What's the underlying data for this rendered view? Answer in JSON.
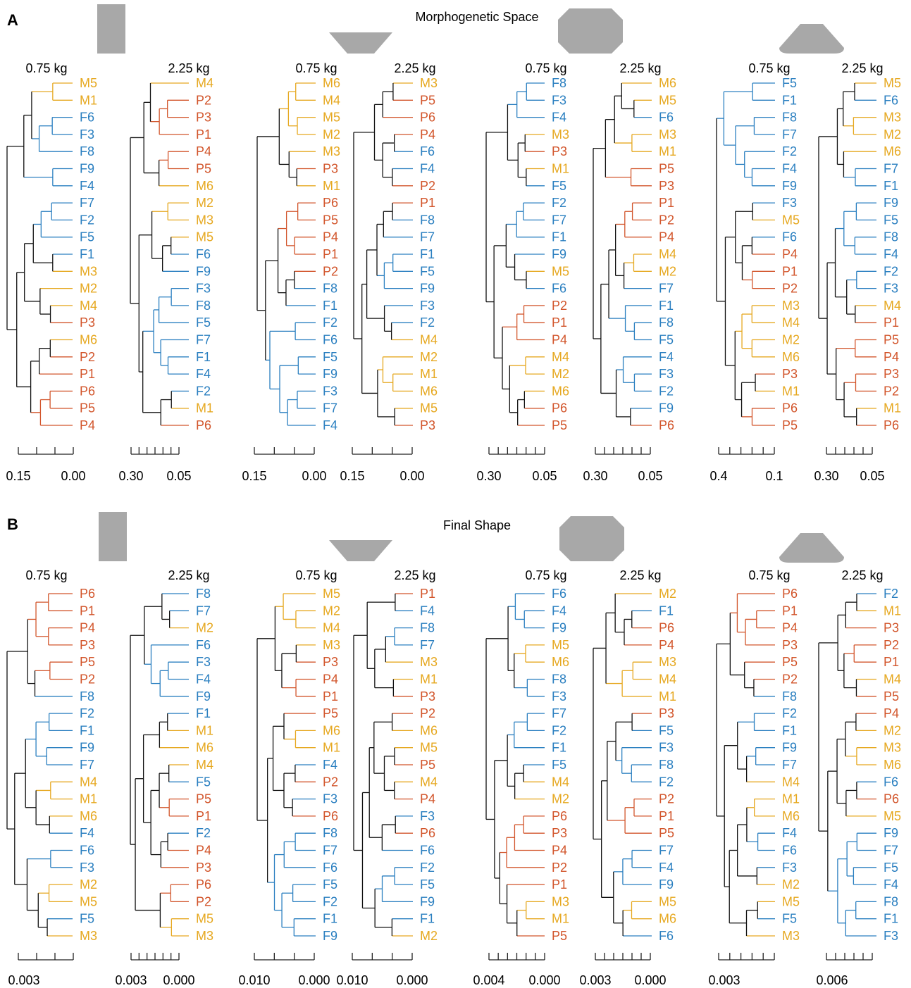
{
  "colors": {
    "F": "#2a7fc0",
    "M": "#e6a820",
    "P": "#d2552b",
    "mixed": "#111111",
    "pink": "#d94070",
    "shape": "#a8a8a8",
    "axis": "#222222"
  },
  "panels": [
    {
      "letter": "A",
      "title": "Morphogenetic Space",
      "groups": [
        {
          "shape": "rectangle",
          "trees": [
            {
              "mass": "0.75 kg",
              "leaves": [
                "M5",
                "M1",
                "F6",
                "F3",
                "F8",
                "F9",
                "F4",
                "F7",
                "F2",
                "F5",
                "F1",
                "M3",
                "M2",
                "M4",
                "P3",
                "M6",
                "P2",
                "P1",
                "P6",
                "P5",
                "P4"
              ],
              "axis_labels": [
                "0.15",
                "0.00"
              ]
            },
            {
              "mass": "2.25 kg",
              "leaves": [
                "M4",
                "P2",
                "P3",
                "P1",
                "P4",
                "P5",
                "M6",
                "M2",
                "M3",
                "M5",
                "F6",
                "F9",
                "F3",
                "F8",
                "F5",
                "F7",
                "F1",
                "F4",
                "F2",
                "M1",
                "P6"
              ],
              "axis_labels": [
                "0.30",
                "0.05"
              ]
            }
          ]
        },
        {
          "shape": "trapezoid",
          "trees": [
            {
              "mass": "0.75 kg",
              "leaves": [
                "M6",
                "M4",
                "M5",
                "M2",
                "M3",
                "P3",
                "M1",
                "P6",
                "P5",
                "P4",
                "P1",
                "P2",
                "F8",
                "F1",
                "F2",
                "F6",
                "F5",
                "F9",
                "F3",
                "F7",
                "F4"
              ],
              "axis_labels": [
                "0.15",
                "0.00"
              ]
            },
            {
              "mass": "2.25 kg",
              "leaves": [
                "M3",
                "P5",
                "P6",
                "P4",
                "F6",
                "F4",
                "P2",
                "P1",
                "F8",
                "F7",
                "F1",
                "F5",
                "F9",
                "F3",
                "F2",
                "M4",
                "M2",
                "M1",
                "M6",
                "M5",
                "P3"
              ],
              "axis_labels": [
                "0.15",
                "0.00"
              ]
            }
          ]
        },
        {
          "shape": "octagon",
          "trees": [
            {
              "mass": "0.75 kg",
              "leaves": [
                "F8",
                "F3",
                "F4",
                "M3",
                "P3",
                "M1",
                "F5",
                "F2",
                "F7",
                "F1",
                "F9",
                "M5",
                "F6",
                "P2",
                "P1",
                "P4",
                "M4",
                "M2",
                "M6",
                "P6",
                "P5"
              ],
              "axis_labels": [
                "0.30",
                "0.05"
              ]
            },
            {
              "mass": "2.25 kg",
              "leaves": [
                "M6",
                "M5",
                "F6",
                "M3",
                "M1",
                "P5",
                "P3",
                "P1",
                "P2",
                "P4",
                "M4",
                "M2",
                "F7",
                "F1",
                "F8",
                "F5",
                "F4",
                "F3",
                "F2",
                "F9",
                "P6"
              ],
              "axis_labels": [
                "0.30",
                "0.05"
              ]
            }
          ]
        },
        {
          "shape": "dome",
          "trees": [
            {
              "mass": "0.75 kg",
              "leaves": [
                "F5",
                "F1",
                "F8",
                "F7",
                "F2",
                "F4",
                "F9",
                "F3",
                "M5",
                "F6",
                "P4",
                "P1",
                "P2",
                "M3",
                "M4",
                "M2",
                "M6",
                "P3",
                "M1",
                "P6",
                "P5"
              ],
              "axis_labels": [
                "0.4",
                "0.1"
              ]
            },
            {
              "mass": "2.25 kg",
              "leaves": [
                "M5",
                "F6",
                "M3",
                "M2",
                "M6",
                "F7",
                "F1",
                "F9",
                "F5",
                "F8",
                "F4",
                "F2",
                "F3",
                "M4",
                "P1",
                "P5",
                "P4",
                "P3",
                "P2",
                "M1",
                "P6"
              ],
              "axis_labels": [
                "0.30",
                "0.05"
              ]
            }
          ]
        }
      ]
    },
    {
      "letter": "B",
      "title": "Final Shape",
      "groups": [
        {
          "shape": "rectangle",
          "trees": [
            {
              "mass": "0.75 kg",
              "leaves": [
                "P6",
                "P1",
                "P4",
                "P3",
                "P5",
                "P2",
                "F8",
                "F2",
                "F1",
                "F9",
                "F7",
                "M4",
                "M1",
                "M6",
                "F4",
                "F6",
                "F3",
                "M2",
                "M5",
                "F5",
                "M3"
              ],
              "axis_labels": [
                "0.003"
              ]
            },
            {
              "mass": "2.25 kg",
              "leaves": [
                "F8",
                "F7",
                "M2",
                "F6",
                "F3",
                "F4",
                "F9",
                "F1",
                "M1",
                "M6",
                "M4",
                "F5",
                "P5",
                "P1",
                "F2",
                "P4",
                "P3",
                "P6",
                "P2",
                "M5",
                "M3"
              ],
              "axis_labels": [
                "0.003",
                "0.000"
              ]
            }
          ]
        },
        {
          "shape": "trapezoid",
          "trees": [
            {
              "mass": "0.75 kg",
              "leaves": [
                "M5",
                "M2",
                "M4",
                "M3",
                "P3",
                "P4",
                "P1",
                "P5",
                "M6",
                "M1",
                "F4",
                "P2",
                "F3",
                "P6",
                "F8",
                "F7",
                "F6",
                "F5",
                "F2",
                "F1",
                "F9"
              ],
              "axis_labels": [
                "0.010",
                "0.000"
              ]
            },
            {
              "mass": "2.25 kg",
              "leaves": [
                "P1",
                "F4",
                "F8",
                "F7",
                "M3",
                "M1",
                "P3",
                "P2",
                "M6",
                "M5",
                "P5",
                "M4",
                "P4",
                "F3",
                "P6",
                "F6",
                "F2",
                "F5",
                "F9",
                "F1",
                "M2"
              ],
              "axis_labels": [
                "0.010",
                "0.000"
              ]
            }
          ]
        },
        {
          "shape": "octagon",
          "trees": [
            {
              "mass": "0.75 kg",
              "leaves": [
                "F6",
                "F4",
                "F9",
                "M5",
                "M6",
                "F8",
                "F3",
                "F7",
                "F2",
                "F1",
                "F5",
                "M4",
                "M2",
                "P6",
                "P3",
                "P4",
                "P2",
                "P1",
                "M3",
                "M1",
                "P5"
              ],
              "axis_labels": [
                "0.004",
                "0.000"
              ]
            },
            {
              "mass": "2.25 kg",
              "leaves": [
                "M2",
                "F1",
                "P6",
                "P4",
                "M3",
                "M4",
                "M1",
                "P3",
                "F5",
                "F3",
                "F8",
                "F2",
                "P2",
                "P1",
                "P5",
                "F7",
                "F4",
                "F9",
                "M5",
                "M6",
                "F6"
              ],
              "axis_labels": [
                "0.003",
                "0.000"
              ]
            }
          ]
        },
        {
          "shape": "dome",
          "trees": [
            {
              "mass": "0.75 kg",
              "leaves": [
                "P6",
                "P1",
                "P4",
                "P3",
                "P5",
                "P2",
                "F8",
                "F2",
                "F1",
                "F9",
                "F7",
                "M4",
                "M1",
                "M6",
                "F4",
                "F6",
                "F3",
                "M2",
                "M5",
                "F5",
                "M3"
              ],
              "axis_labels": [
                "0.003"
              ]
            },
            {
              "mass": "2.25 kg",
              "leaves": [
                "F2",
                "M1",
                "P3",
                "P2",
                "P1",
                "M4",
                "P5",
                "P4",
                "M2",
                "M3",
                "M6",
                "F6",
                "P6",
                "M5",
                "F9",
                "F7",
                "F5",
                "F4",
                "F8",
                "F1",
                "F3"
              ],
              "axis_labels": [
                "0.006"
              ]
            }
          ]
        }
      ]
    }
  ]
}
